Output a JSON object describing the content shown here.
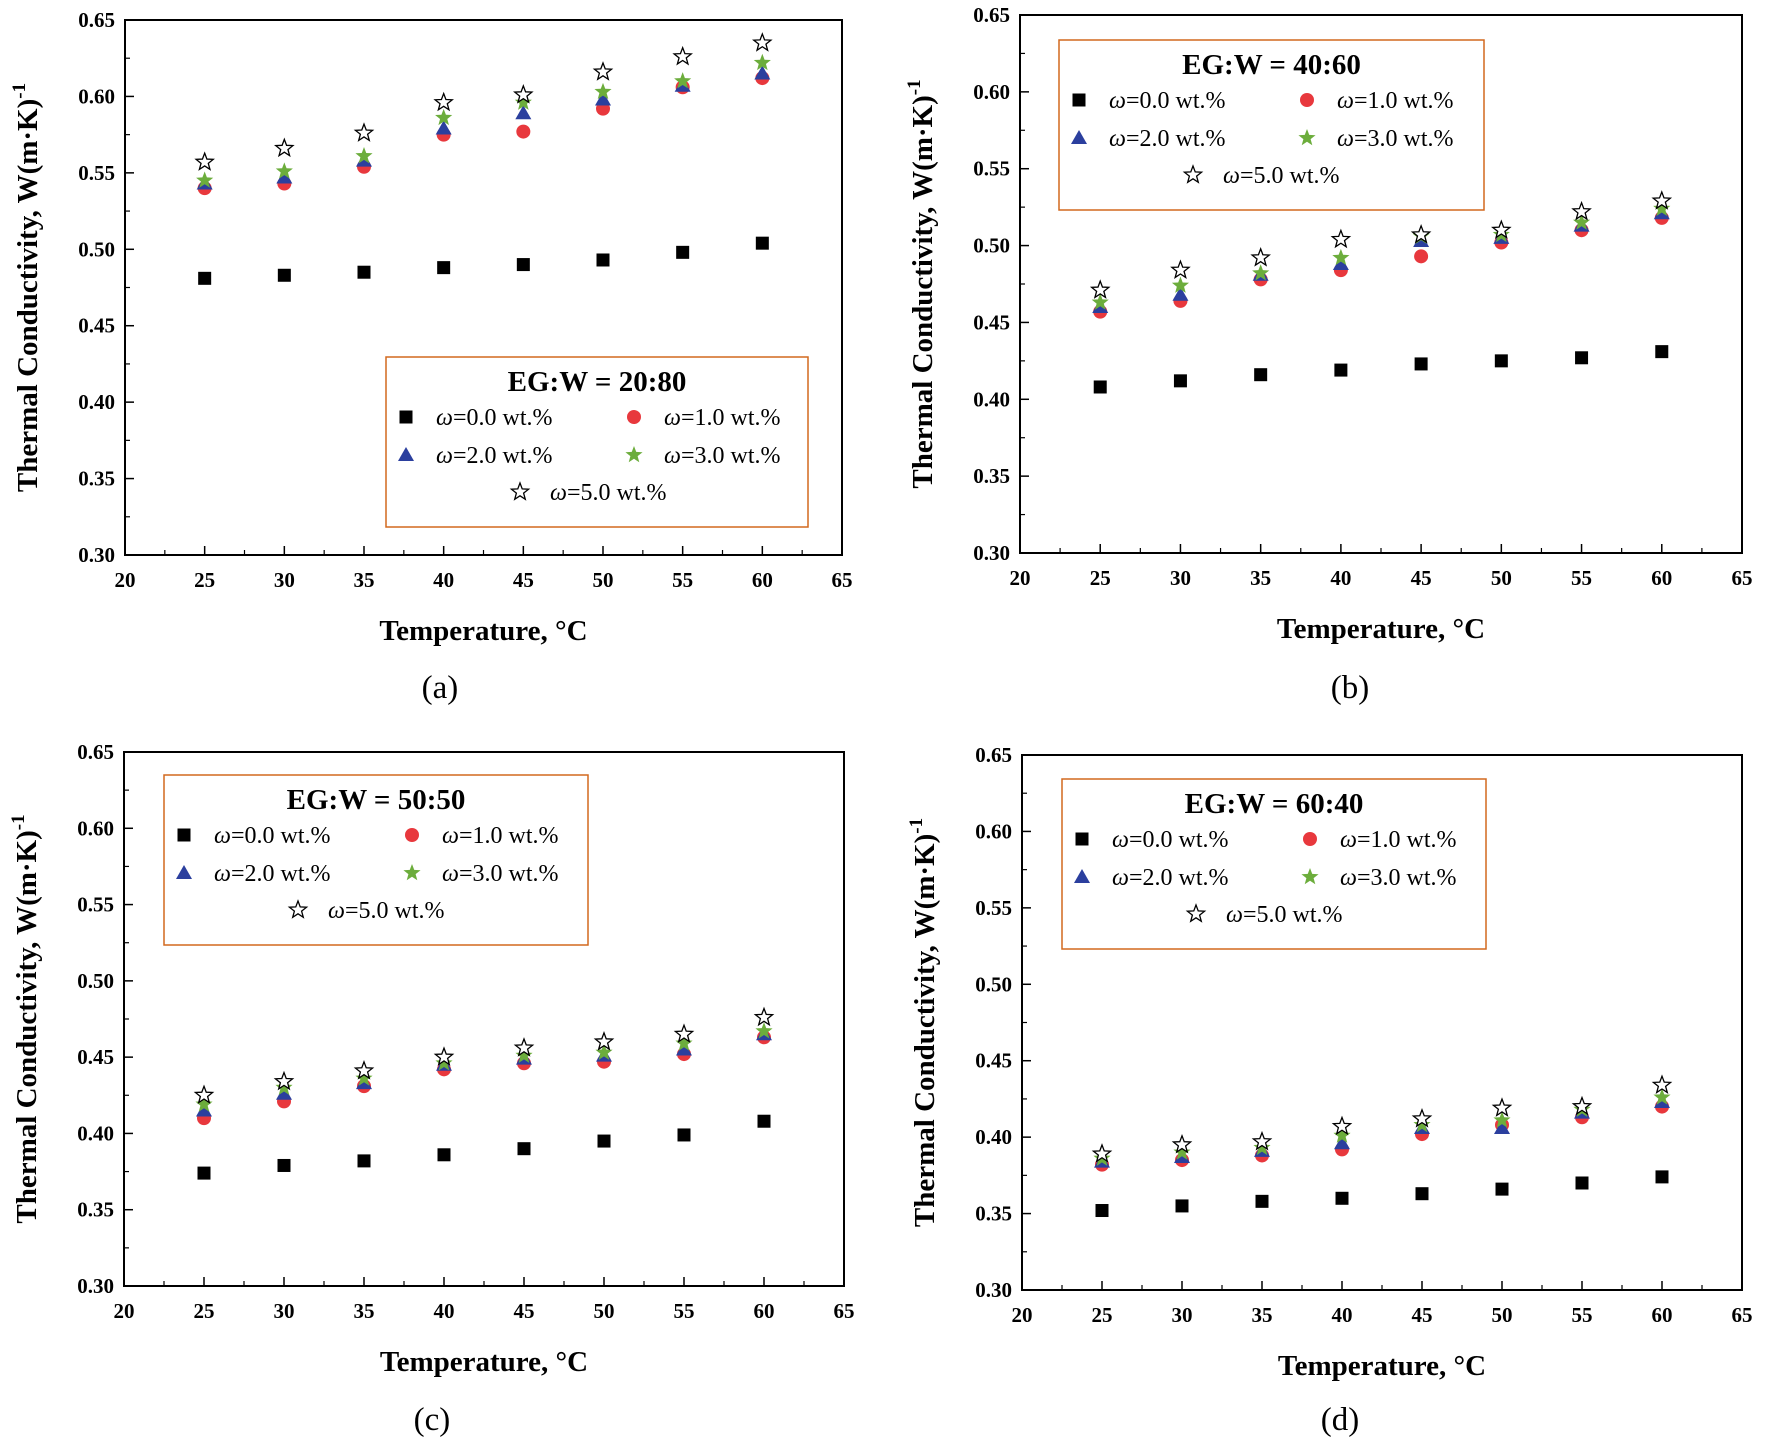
{
  "chart_data": [
    {
      "type": "scatter",
      "panel_label": "(a)",
      "legend_title": "EG:W = 20:80",
      "xlabel": "Temperature, °C",
      "ylabel": "Thermal Conductivity, W(m·K)",
      "ylabel_sup": "-1",
      "xlim": [
        20,
        65
      ],
      "ylim": [
        0.3,
        0.65
      ],
      "xticks": [
        "20",
        "25",
        "30",
        "35",
        "40",
        "45",
        "50",
        "55",
        "60",
        "65"
      ],
      "yticks": [
        "0.30",
        "0.35",
        "0.40",
        "0.45",
        "0.50",
        "0.55",
        "0.60",
        "0.65"
      ],
      "grid": false,
      "legend_position": "bottom-right",
      "x": [
        25,
        30,
        35,
        40,
        45,
        50,
        55,
        60
      ],
      "series": [
        {
          "name": "ω=0.0 wt.%",
          "marker": "square",
          "color": "#000000",
          "values": [
            0.481,
            0.483,
            0.485,
            0.488,
            0.49,
            0.493,
            0.498,
            0.504
          ]
        },
        {
          "name": "ω=1.0 wt.%",
          "marker": "circle",
          "color": "#e8383d",
          "values": [
            0.54,
            0.543,
            0.554,
            0.575,
            0.577,
            0.592,
            0.606,
            0.612
          ]
        },
        {
          "name": "ω=2.0 wt.%",
          "marker": "triangle",
          "color": "#2b3f9e",
          "values": [
            0.543,
            0.547,
            0.558,
            0.579,
            0.589,
            0.598,
            0.607,
            0.615
          ]
        },
        {
          "name": "ω=3.0 wt.%",
          "marker": "star",
          "color": "#6cad3c",
          "values": [
            0.545,
            0.551,
            0.561,
            0.586,
            0.596,
            0.603,
            0.61,
            0.622
          ]
        },
        {
          "name": "ω=5.0 wt.%",
          "marker": "star-open",
          "color": "#000000",
          "values": [
            0.557,
            0.566,
            0.576,
            0.596,
            0.601,
            0.616,
            0.626,
            0.635
          ]
        }
      ]
    },
    {
      "type": "scatter",
      "panel_label": "(b)",
      "legend_title": "EG:W = 40:60",
      "xlabel": "Temperature, °C",
      "ylabel": "Thermal Conductivity, W(m·K)",
      "ylabel_sup": "-1",
      "xlim": [
        20,
        65
      ],
      "ylim": [
        0.3,
        0.65
      ],
      "xticks": [
        "20",
        "25",
        "30",
        "35",
        "40",
        "45",
        "50",
        "55",
        "60",
        "65"
      ],
      "yticks": [
        "0.30",
        "0.35",
        "0.40",
        "0.45",
        "0.50",
        "0.55",
        "0.60",
        "0.65"
      ],
      "grid": false,
      "legend_position": "top-left",
      "x": [
        25,
        30,
        35,
        40,
        45,
        50,
        55,
        60
      ],
      "series": [
        {
          "name": "ω=0.0 wt.%",
          "marker": "square",
          "color": "#000000",
          "values": [
            0.408,
            0.412,
            0.416,
            0.419,
            0.423,
            0.425,
            0.427,
            0.431
          ]
        },
        {
          "name": "ω=1.0 wt.%",
          "marker": "circle",
          "color": "#e8383d",
          "values": [
            0.457,
            0.464,
            0.478,
            0.484,
            0.493,
            0.502,
            0.51,
            0.518
          ]
        },
        {
          "name": "ω=2.0 wt.%",
          "marker": "triangle",
          "color": "#2b3f9e",
          "values": [
            0.46,
            0.468,
            0.481,
            0.488,
            0.503,
            0.505,
            0.513,
            0.521
          ]
        },
        {
          "name": "ω=3.0 wt.%",
          "marker": "star",
          "color": "#6cad3c",
          "values": [
            0.463,
            0.474,
            0.482,
            0.492,
            0.506,
            0.507,
            0.515,
            0.524
          ]
        },
        {
          "name": "ω=5.0 wt.%",
          "marker": "star-open",
          "color": "#000000",
          "values": [
            0.471,
            0.484,
            0.492,
            0.504,
            0.507,
            0.51,
            0.522,
            0.529
          ]
        }
      ]
    },
    {
      "type": "scatter",
      "panel_label": "(c)",
      "legend_title": "EG:W = 50:50",
      "xlabel": "Temperature, °C",
      "ylabel": "Thermal Conductivity, W(m·K)",
      "ylabel_sup": "-1",
      "xlim": [
        20,
        65
      ],
      "ylim": [
        0.3,
        0.65
      ],
      "xticks": [
        "20",
        "25",
        "30",
        "35",
        "40",
        "45",
        "50",
        "55",
        "60",
        "65"
      ],
      "yticks": [
        "0.30",
        "0.35",
        "0.40",
        "0.45",
        "0.50",
        "0.55",
        "0.60",
        "0.65"
      ],
      "grid": false,
      "legend_position": "top-left",
      "x": [
        25,
        30,
        35,
        40,
        45,
        50,
        55,
        60
      ],
      "series": [
        {
          "name": "ω=0.0 wt.%",
          "marker": "square",
          "color": "#000000",
          "values": [
            0.374,
            0.379,
            0.382,
            0.386,
            0.39,
            0.395,
            0.399,
            0.408
          ]
        },
        {
          "name": "ω=1.0 wt.%",
          "marker": "circle",
          "color": "#e8383d",
          "values": [
            0.41,
            0.421,
            0.431,
            0.442,
            0.446,
            0.447,
            0.452,
            0.463
          ]
        },
        {
          "name": "ω=2.0 wt.%",
          "marker": "triangle",
          "color": "#2b3f9e",
          "values": [
            0.415,
            0.426,
            0.433,
            0.445,
            0.449,
            0.451,
            0.455,
            0.465
          ]
        },
        {
          "name": "ω=3.0 wt.%",
          "marker": "star",
          "color": "#6cad3c",
          "values": [
            0.419,
            0.43,
            0.436,
            0.446,
            0.451,
            0.453,
            0.459,
            0.467
          ]
        },
        {
          "name": "ω=5.0 wt.%",
          "marker": "star-open",
          "color": "#000000",
          "values": [
            0.425,
            0.434,
            0.441,
            0.45,
            0.456,
            0.46,
            0.465,
            0.476
          ]
        }
      ]
    },
    {
      "type": "scatter",
      "panel_label": "(d)",
      "legend_title": "EG:W = 60:40",
      "xlabel": "Temperature, °C",
      "ylabel": "Thermal Conductivity, W(m·K)",
      "ylabel_sup": "-1",
      "xlim": [
        20,
        65
      ],
      "ylim": [
        0.3,
        0.65
      ],
      "xticks": [
        "20",
        "25",
        "30",
        "35",
        "40",
        "45",
        "50",
        "55",
        "60",
        "65"
      ],
      "yticks": [
        "0.30",
        "0.35",
        "0.40",
        "0.45",
        "0.50",
        "0.55",
        "0.60",
        "0.65"
      ],
      "grid": false,
      "legend_position": "top-left",
      "x": [
        25,
        30,
        35,
        40,
        45,
        50,
        55,
        60
      ],
      "series": [
        {
          "name": "ω=0.0 wt.%",
          "marker": "square",
          "color": "#000000",
          "values": [
            0.352,
            0.355,
            0.358,
            0.36,
            0.363,
            0.366,
            0.37,
            0.374
          ]
        },
        {
          "name": "ω=1.0 wt.%",
          "marker": "circle",
          "color": "#e8383d",
          "values": [
            0.382,
            0.385,
            0.388,
            0.392,
            0.402,
            0.408,
            0.413,
            0.42
          ]
        },
        {
          "name": "ω=2.0 wt.%",
          "marker": "triangle",
          "color": "#2b3f9e",
          "values": [
            0.384,
            0.387,
            0.391,
            0.396,
            0.406,
            0.406,
            0.416,
            0.423
          ]
        },
        {
          "name": "ω=3.0 wt.%",
          "marker": "star",
          "color": "#6cad3c",
          "values": [
            0.386,
            0.39,
            0.393,
            0.401,
            0.408,
            0.411,
            0.418,
            0.426
          ]
        },
        {
          "name": "ω=5.0 wt.%",
          "marker": "star-open",
          "color": "#000000",
          "values": [
            0.389,
            0.395,
            0.397,
            0.407,
            0.412,
            0.419,
            0.42,
            0.434
          ]
        }
      ]
    }
  ],
  "colors": {
    "legend_border": "#d2691e",
    "axis": "#000000"
  }
}
